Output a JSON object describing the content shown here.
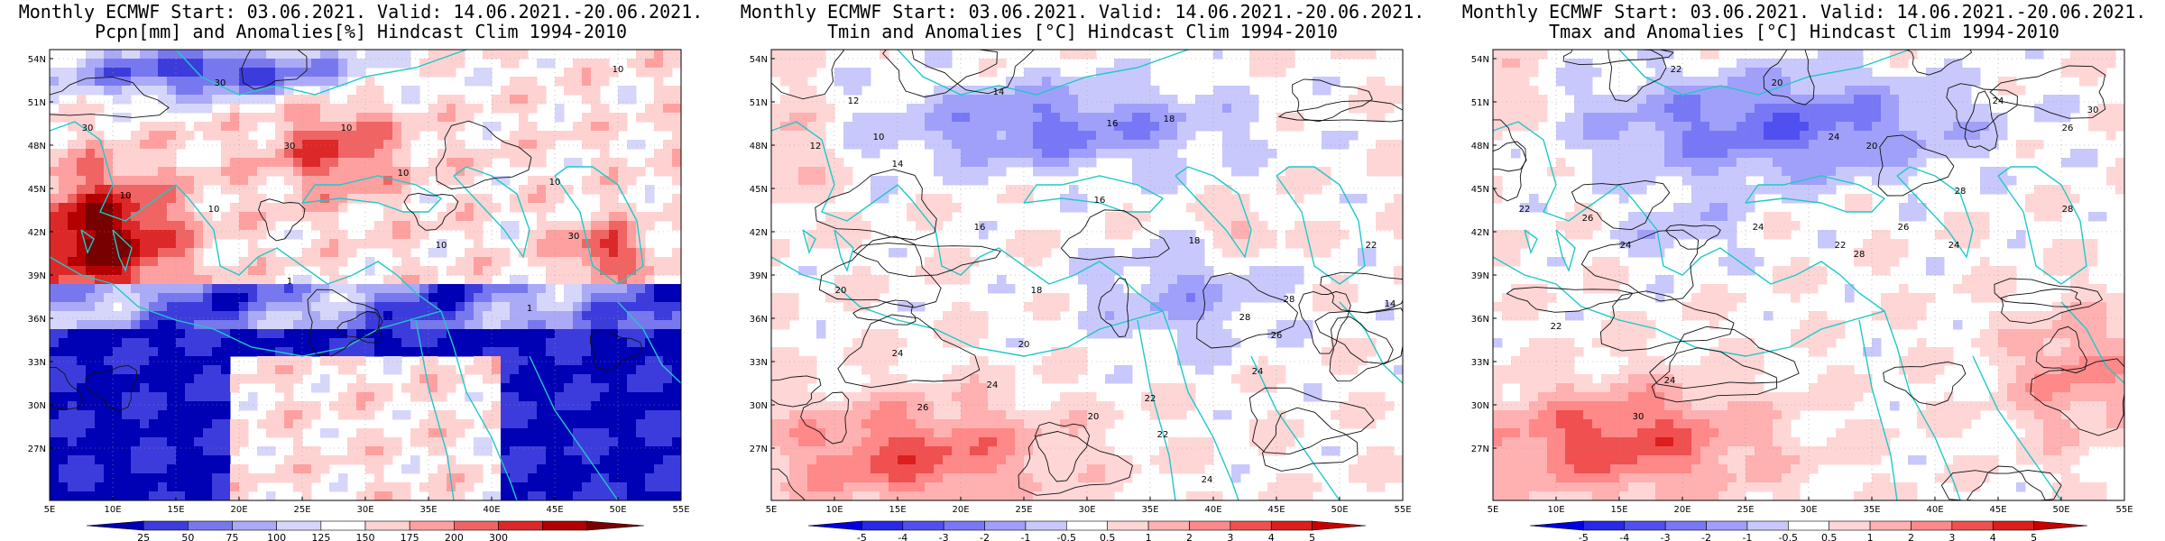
{
  "panels": [
    {
      "title_line1": "Monthly ECMWF Start: 03.06.2021. Valid: 14.06.2021.-20.06.2021.",
      "title_line2": "Pcpn[mm] and Anomalies[%] Hindcast Clim 1994-2010",
      "lat_labels": [
        "54N",
        "51N",
        "48N",
        "45N",
        "42N",
        "39N",
        "36N",
        "33N",
        "30N",
        "27N"
      ],
      "lon_labels": [
        "5E",
        "10E",
        "15E",
        "20E",
        "25E",
        "30E",
        "35E",
        "40E",
        "45E",
        "50E",
        "55E"
      ],
      "colorbar_labels": [
        "25",
        "50",
        "75",
        "100",
        "125",
        "150",
        "175",
        "200",
        "300"
      ],
      "colors": [
        "#0000b4",
        "#3c3cdc",
        "#7878ee",
        "#aaaaf6",
        "#d6d6fa",
        "#ffffff",
        "#ffd2d2",
        "#ffa0a0",
        "#f06464",
        "#dc2828",
        "#b40000",
        "#780000"
      ],
      "contour_labels": [
        "30",
        "10",
        "10",
        "30",
        "10",
        "10",
        "1",
        "10",
        "30",
        "1",
        "10",
        "30",
        "10"
      ]
    },
    {
      "title_line1": "Monthly ECMWF Start: 03.06.2021. Valid: 14.06.2021.-20.06.2021.",
      "title_line2": "Tmin and Anomalies [°C] Hindcast Clim 1994-2010",
      "lat_labels": [
        "54N",
        "51N",
        "48N",
        "45N",
        "42N",
        "39N",
        "36N",
        "33N",
        "30N",
        "27N"
      ],
      "lon_labels": [
        "5E",
        "10E",
        "15E",
        "20E",
        "25E",
        "30E",
        "35E",
        "40E",
        "45E",
        "50E",
        "55E"
      ],
      "colorbar_labels": [
        "-5",
        "-4",
        "-3",
        "-2",
        "-1",
        "-0.5",
        "0.5",
        "1",
        "2",
        "3",
        "4",
        "5"
      ],
      "colors": [
        "#0000dc",
        "#2828e6",
        "#5050f0",
        "#7878f6",
        "#a0a0fa",
        "#c8c8fc",
        "#ffffff",
        "#ffd6d6",
        "#ffb0b0",
        "#ff8888",
        "#f05050",
        "#dc1e1e",
        "#c80000"
      ],
      "contour_labels": [
        "12",
        "14",
        "16",
        "18",
        "16",
        "12",
        "10",
        "14",
        "16",
        "18",
        "20",
        "22",
        "20",
        "22",
        "24",
        "18",
        "24",
        "26",
        "28",
        "20",
        "22",
        "24",
        "26",
        "28",
        "24",
        "14"
      ]
    },
    {
      "title_line1": "Monthly ECMWF Start: 03.06.2021. Valid: 14.06.2021.-20.06.2021.",
      "title_line2": "Tmax and Anomalies [°C] Hindcast Clim 1994-2010",
      "lat_labels": [
        "54N",
        "51N",
        "48N",
        "45N",
        "42N",
        "39N",
        "36N",
        "33N",
        "30N",
        "27N"
      ],
      "lon_labels": [
        "5E",
        "10E",
        "15E",
        "20E",
        "25E",
        "30E",
        "35E",
        "40E",
        "45E",
        "50E",
        "55E"
      ],
      "colorbar_labels": [
        "-5",
        "-4",
        "-3",
        "-2",
        "-1",
        "-0.5",
        "0.5",
        "1",
        "2",
        "3",
        "4",
        "5"
      ],
      "colors": [
        "#0000dc",
        "#2828e6",
        "#5050f0",
        "#7878f6",
        "#a0a0fa",
        "#c8c8fc",
        "#ffffff",
        "#ffd6d6",
        "#ffb0b0",
        "#ff8888",
        "#f05050",
        "#dc1e1e",
        "#c80000"
      ],
      "contour_labels": [
        "20",
        "22",
        "24",
        "26",
        "28",
        "30",
        "24",
        "22",
        "26",
        "24",
        "28",
        "20",
        "24",
        "22",
        "26",
        "24",
        "30",
        "28",
        "24",
        "22"
      ]
    }
  ],
  "coast_color": "#20c8c8"
}
